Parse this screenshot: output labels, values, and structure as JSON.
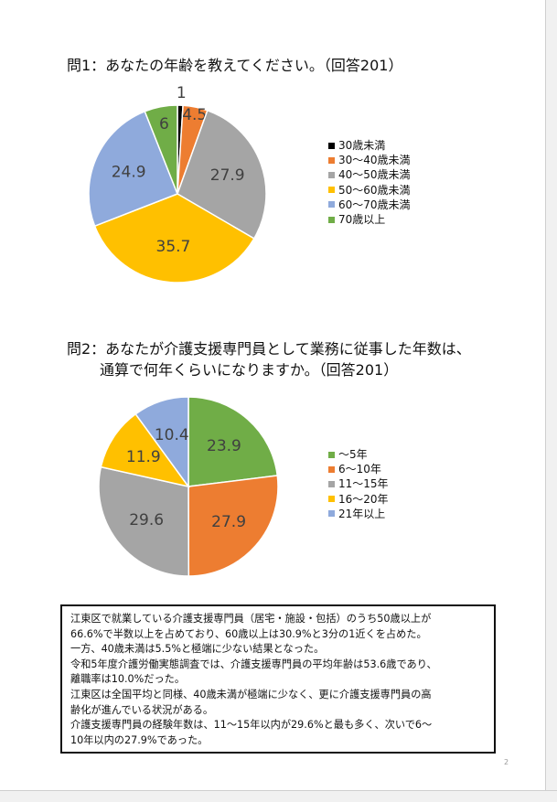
{
  "q1": {
    "title": "問1：あなたの年齢を教えてください。（回答201）",
    "chart_data": {
      "type": "pie",
      "categories": [
        "30歳未満",
        "30～40歳未満",
        "40～50歳未満",
        "50～60歳未満",
        "60～70歳未満",
        "70歳以上"
      ],
      "values": [
        1,
        4.5,
        27.9,
        35.7,
        24.9,
        6
      ],
      "labels": [
        "1",
        "4.5",
        "27.9",
        "35.7",
        "24.9",
        "6"
      ],
      "colors": [
        "#000000",
        "#ed7d31",
        "#a5a5a5",
        "#ffc000",
        "#8faadc",
        "#70ad47"
      ],
      "legend_position": "right"
    }
  },
  "q2": {
    "title_line1": "問2：あなたが介護支援専門員として業務に従事した年数は、",
    "title_line2": "通算で何年くらいになりますか。（回答201）",
    "chart_data": {
      "type": "pie",
      "categories": [
        "～5年",
        "6～10年",
        "11～15年",
        "16～20年",
        "21年以上"
      ],
      "values": [
        23.9,
        27.9,
        29.6,
        11.9,
        10.4
      ],
      "labels": [
        "23.9",
        "27.9",
        "29.6",
        "11.9",
        "10.4"
      ],
      "colors": [
        "#70ad47",
        "#ed7d31",
        "#a5a5a5",
        "#ffc000",
        "#8faadc"
      ],
      "legend_position": "right"
    }
  },
  "summary": {
    "lines": [
      "江東区で就業している介護支援専門員（居宅・施設・包括）のうち50歳以上が",
      "66.6%で半数以上を占めており、60歳以上は30.9%と3分の1近くを占めた。",
      "一方、40歳未満は5.5%と極端に少ない結果となった。",
      "令和5年度介護労働実態調査では、介護支援専門員の平均年齢は53.6歳であり、",
      "離職率は10.0%だった。",
      "江東区は全国平均と同様、40歳未満が極端に少なく、更に介護支援専門員の高",
      "齢化が進んでいる状況がある。",
      "介護支援専門員の経験年数は、11～15年以内が29.6%と最も多く、次いで6～",
      "10年以内の27.9%であった。"
    ]
  },
  "page_number": "2"
}
